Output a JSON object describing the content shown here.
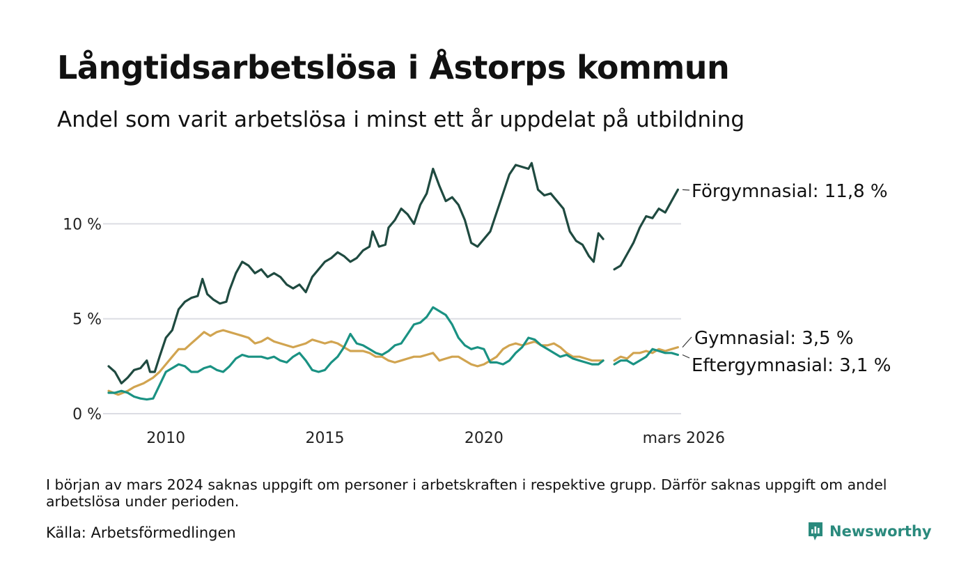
{
  "title": "Långtidsarbetslösa i Åstorps kommun",
  "subtitle": "Andel som varit arbetslösa i minst ett år uppdelat på utbildning",
  "note": "I början av mars 2024 saknas uppgift om personer i arbetskraften i respektive grupp. Därför saknas uppgift om andel arbetslösa under perioden.",
  "source": "Källa: Arbetsförmedlingen",
  "brand": "Newsworthy",
  "colors": {
    "forgymnasial": "#1f4a40",
    "gymnasial": "#d1a450",
    "eftergymnasial": "#1a9283",
    "grid": "#dcdde3",
    "brand": "#2a8a7d"
  },
  "chart_data": {
    "type": "line",
    "title": "Långtidsarbetslösa i Åstorps kommun",
    "xlabel": "",
    "ylabel": "",
    "xlim": [
      2008.2,
      2026.2
    ],
    "ylim": [
      0,
      13.5
    ],
    "y_ticks": [
      {
        "value": 0,
        "label": "0 %"
      },
      {
        "value": 5,
        "label": "5 %"
      },
      {
        "value": 10,
        "label": "10 %"
      }
    ],
    "x_ticks": [
      {
        "value": 2010,
        "label": "2010"
      },
      {
        "value": 2015,
        "label": "2015"
      },
      {
        "value": 2020,
        "label": "2020"
      },
      {
        "value": 2026.2,
        "label": "mars 2026"
      }
    ],
    "gap": [
      2023.8,
      2024.1
    ],
    "series": [
      {
        "name": "Förgymnasial",
        "color_key": "forgymnasial",
        "end_label": "Förgymnasial: 11,8 %",
        "points": [
          [
            2008.2,
            2.5
          ],
          [
            2008.4,
            2.2
          ],
          [
            2008.6,
            1.6
          ],
          [
            2008.8,
            1.9
          ],
          [
            2009.0,
            2.3
          ],
          [
            2009.2,
            2.4
          ],
          [
            2009.4,
            2.8
          ],
          [
            2009.5,
            2.2
          ],
          [
            2009.65,
            2.2
          ],
          [
            2009.8,
            3.0
          ],
          [
            2010.0,
            4.0
          ],
          [
            2010.2,
            4.4
          ],
          [
            2010.4,
            5.5
          ],
          [
            2010.6,
            5.9
          ],
          [
            2010.8,
            6.1
          ],
          [
            2011.0,
            6.2
          ],
          [
            2011.15,
            7.1
          ],
          [
            2011.3,
            6.3
          ],
          [
            2011.5,
            6.0
          ],
          [
            2011.7,
            5.8
          ],
          [
            2011.9,
            5.9
          ],
          [
            2012.0,
            6.5
          ],
          [
            2012.2,
            7.4
          ],
          [
            2012.4,
            8.0
          ],
          [
            2012.6,
            7.8
          ],
          [
            2012.8,
            7.4
          ],
          [
            2013.0,
            7.6
          ],
          [
            2013.2,
            7.2
          ],
          [
            2013.4,
            7.4
          ],
          [
            2013.6,
            7.2
          ],
          [
            2013.8,
            6.8
          ],
          [
            2014.0,
            6.6
          ],
          [
            2014.2,
            6.8
          ],
          [
            2014.4,
            6.4
          ],
          [
            2014.6,
            7.2
          ],
          [
            2014.8,
            7.6
          ],
          [
            2015.0,
            8.0
          ],
          [
            2015.2,
            8.2
          ],
          [
            2015.4,
            8.5
          ],
          [
            2015.6,
            8.3
          ],
          [
            2015.8,
            8.0
          ],
          [
            2016.0,
            8.2
          ],
          [
            2016.2,
            8.6
          ],
          [
            2016.4,
            8.8
          ],
          [
            2016.5,
            9.6
          ],
          [
            2016.7,
            8.8
          ],
          [
            2016.9,
            8.9
          ],
          [
            2017.0,
            9.8
          ],
          [
            2017.2,
            10.2
          ],
          [
            2017.4,
            10.8
          ],
          [
            2017.6,
            10.5
          ],
          [
            2017.8,
            10.0
          ],
          [
            2018.0,
            11.0
          ],
          [
            2018.2,
            11.6
          ],
          [
            2018.4,
            12.9
          ],
          [
            2018.6,
            12.0
          ],
          [
            2018.8,
            11.2
          ],
          [
            2019.0,
            11.4
          ],
          [
            2019.2,
            11.0
          ],
          [
            2019.4,
            10.2
          ],
          [
            2019.6,
            9.0
          ],
          [
            2019.8,
            8.8
          ],
          [
            2020.0,
            9.2
          ],
          [
            2020.2,
            9.6
          ],
          [
            2020.4,
            10.6
          ],
          [
            2020.6,
            11.6
          ],
          [
            2020.8,
            12.6
          ],
          [
            2021.0,
            13.1
          ],
          [
            2021.2,
            13.0
          ],
          [
            2021.4,
            12.9
          ],
          [
            2021.5,
            13.2
          ],
          [
            2021.7,
            11.8
          ],
          [
            2021.9,
            11.5
          ],
          [
            2022.1,
            11.6
          ],
          [
            2022.3,
            11.2
          ],
          [
            2022.5,
            10.8
          ],
          [
            2022.7,
            9.6
          ],
          [
            2022.9,
            9.1
          ],
          [
            2023.1,
            8.9
          ],
          [
            2023.3,
            8.3
          ],
          [
            2023.45,
            8.0
          ],
          [
            2023.6,
            9.5
          ],
          [
            2023.75,
            9.2
          ],
          null,
          [
            2024.1,
            7.6
          ],
          [
            2024.3,
            7.8
          ],
          [
            2024.5,
            8.4
          ],
          [
            2024.7,
            9.0
          ],
          [
            2024.9,
            9.8
          ],
          [
            2025.1,
            10.4
          ],
          [
            2025.3,
            10.3
          ],
          [
            2025.5,
            10.8
          ],
          [
            2025.7,
            10.6
          ],
          [
            2025.9,
            11.2
          ],
          [
            2026.1,
            11.8
          ]
        ]
      },
      {
        "name": "Gymnasial",
        "color_key": "gymnasial",
        "end_label": "Gymnasial:  3,5 %",
        "points": [
          [
            2008.2,
            1.2
          ],
          [
            2008.5,
            1.0
          ],
          [
            2008.8,
            1.2
          ],
          [
            2009.0,
            1.4
          ],
          [
            2009.3,
            1.6
          ],
          [
            2009.6,
            1.9
          ],
          [
            2009.8,
            2.2
          ],
          [
            2010.0,
            2.6
          ],
          [
            2010.2,
            3.0
          ],
          [
            2010.4,
            3.4
          ],
          [
            2010.6,
            3.4
          ],
          [
            2010.8,
            3.7
          ],
          [
            2011.0,
            4.0
          ],
          [
            2011.2,
            4.3
          ],
          [
            2011.4,
            4.1
          ],
          [
            2011.6,
            4.3
          ],
          [
            2011.8,
            4.4
          ],
          [
            2012.0,
            4.3
          ],
          [
            2012.2,
            4.2
          ],
          [
            2012.4,
            4.1
          ],
          [
            2012.6,
            4.0
          ],
          [
            2012.8,
            3.7
          ],
          [
            2013.0,
            3.8
          ],
          [
            2013.2,
            4.0
          ],
          [
            2013.4,
            3.8
          ],
          [
            2013.6,
            3.7
          ],
          [
            2013.8,
            3.6
          ],
          [
            2014.0,
            3.5
          ],
          [
            2014.2,
            3.6
          ],
          [
            2014.4,
            3.7
          ],
          [
            2014.6,
            3.9
          ],
          [
            2014.8,
            3.8
          ],
          [
            2015.0,
            3.7
          ],
          [
            2015.2,
            3.8
          ],
          [
            2015.4,
            3.7
          ],
          [
            2015.6,
            3.5
          ],
          [
            2015.8,
            3.3
          ],
          [
            2016.0,
            3.3
          ],
          [
            2016.2,
            3.3
          ],
          [
            2016.4,
            3.2
          ],
          [
            2016.6,
            3.0
          ],
          [
            2016.8,
            3.0
          ],
          [
            2017.0,
            2.8
          ],
          [
            2017.2,
            2.7
          ],
          [
            2017.4,
            2.8
          ],
          [
            2017.6,
            2.9
          ],
          [
            2017.8,
            3.0
          ],
          [
            2018.0,
            3.0
          ],
          [
            2018.2,
            3.1
          ],
          [
            2018.4,
            3.2
          ],
          [
            2018.6,
            2.8
          ],
          [
            2018.8,
            2.9
          ],
          [
            2019.0,
            3.0
          ],
          [
            2019.2,
            3.0
          ],
          [
            2019.4,
            2.8
          ],
          [
            2019.6,
            2.6
          ],
          [
            2019.8,
            2.5
          ],
          [
            2020.0,
            2.6
          ],
          [
            2020.2,
            2.8
          ],
          [
            2020.4,
            3.0
          ],
          [
            2020.6,
            3.4
          ],
          [
            2020.8,
            3.6
          ],
          [
            2021.0,
            3.7
          ],
          [
            2021.2,
            3.6
          ],
          [
            2021.4,
            3.7
          ],
          [
            2021.6,
            3.8
          ],
          [
            2021.8,
            3.6
          ],
          [
            2022.0,
            3.6
          ],
          [
            2022.2,
            3.7
          ],
          [
            2022.4,
            3.5
          ],
          [
            2022.6,
            3.2
          ],
          [
            2022.8,
            3.0
          ],
          [
            2023.0,
            3.0
          ],
          [
            2023.2,
            2.9
          ],
          [
            2023.4,
            2.8
          ],
          [
            2023.6,
            2.8
          ],
          [
            2023.75,
            2.8
          ],
          null,
          [
            2024.1,
            2.8
          ],
          [
            2024.3,
            3.0
          ],
          [
            2024.5,
            2.9
          ],
          [
            2024.7,
            3.2
          ],
          [
            2024.9,
            3.2
          ],
          [
            2025.1,
            3.3
          ],
          [
            2025.3,
            3.2
          ],
          [
            2025.5,
            3.4
          ],
          [
            2025.7,
            3.3
          ],
          [
            2025.9,
            3.4
          ],
          [
            2026.1,
            3.5
          ]
        ]
      },
      {
        "name": "Eftergymnasial",
        "color_key": "eftergymnasial",
        "end_label": "Eftergymnasial:  3,1 %",
        "points": [
          [
            2008.2,
            1.1
          ],
          [
            2008.4,
            1.1
          ],
          [
            2008.6,
            1.2
          ],
          [
            2008.8,
            1.1
          ],
          [
            2009.0,
            0.9
          ],
          [
            2009.2,
            0.8
          ],
          [
            2009.4,
            0.75
          ],
          [
            2009.6,
            0.8
          ],
          [
            2009.8,
            1.5
          ],
          [
            2010.0,
            2.2
          ],
          [
            2010.2,
            2.4
          ],
          [
            2010.4,
            2.6
          ],
          [
            2010.6,
            2.5
          ],
          [
            2010.8,
            2.2
          ],
          [
            2011.0,
            2.2
          ],
          [
            2011.2,
            2.4
          ],
          [
            2011.4,
            2.5
          ],
          [
            2011.6,
            2.3
          ],
          [
            2011.8,
            2.2
          ],
          [
            2012.0,
            2.5
          ],
          [
            2012.2,
            2.9
          ],
          [
            2012.4,
            3.1
          ],
          [
            2012.6,
            3.0
          ],
          [
            2012.8,
            3.0
          ],
          [
            2013.0,
            3.0
          ],
          [
            2013.2,
            2.9
          ],
          [
            2013.4,
            3.0
          ],
          [
            2013.6,
            2.8
          ],
          [
            2013.8,
            2.7
          ],
          [
            2014.0,
            3.0
          ],
          [
            2014.2,
            3.2
          ],
          [
            2014.4,
            2.8
          ],
          [
            2014.6,
            2.3
          ],
          [
            2014.8,
            2.2
          ],
          [
            2015.0,
            2.3
          ],
          [
            2015.2,
            2.7
          ],
          [
            2015.4,
            3.0
          ],
          [
            2015.6,
            3.5
          ],
          [
            2015.8,
            4.2
          ],
          [
            2016.0,
            3.7
          ],
          [
            2016.2,
            3.6
          ],
          [
            2016.4,
            3.4
          ],
          [
            2016.6,
            3.2
          ],
          [
            2016.8,
            3.1
          ],
          [
            2017.0,
            3.3
          ],
          [
            2017.2,
            3.6
          ],
          [
            2017.4,
            3.7
          ],
          [
            2017.6,
            4.2
          ],
          [
            2017.8,
            4.7
          ],
          [
            2018.0,
            4.8
          ],
          [
            2018.2,
            5.1
          ],
          [
            2018.4,
            5.6
          ],
          [
            2018.6,
            5.4
          ],
          [
            2018.8,
            5.2
          ],
          [
            2019.0,
            4.7
          ],
          [
            2019.2,
            4.0
          ],
          [
            2019.4,
            3.6
          ],
          [
            2019.6,
            3.4
          ],
          [
            2019.8,
            3.5
          ],
          [
            2020.0,
            3.4
          ],
          [
            2020.2,
            2.7
          ],
          [
            2020.4,
            2.7
          ],
          [
            2020.6,
            2.6
          ],
          [
            2020.8,
            2.8
          ],
          [
            2021.0,
            3.2
          ],
          [
            2021.2,
            3.5
          ],
          [
            2021.4,
            4.0
          ],
          [
            2021.6,
            3.9
          ],
          [
            2021.8,
            3.6
          ],
          [
            2022.0,
            3.4
          ],
          [
            2022.2,
            3.2
          ],
          [
            2022.4,
            3.0
          ],
          [
            2022.6,
            3.1
          ],
          [
            2022.8,
            2.9
          ],
          [
            2023.0,
            2.8
          ],
          [
            2023.2,
            2.7
          ],
          [
            2023.4,
            2.6
          ],
          [
            2023.6,
            2.6
          ],
          [
            2023.75,
            2.8
          ],
          null,
          [
            2024.1,
            2.6
          ],
          [
            2024.3,
            2.8
          ],
          [
            2024.5,
            2.8
          ],
          [
            2024.7,
            2.6
          ],
          [
            2024.9,
            2.8
          ],
          [
            2025.1,
            3.0
          ],
          [
            2025.3,
            3.4
          ],
          [
            2025.5,
            3.3
          ],
          [
            2025.7,
            3.2
          ],
          [
            2025.9,
            3.2
          ],
          [
            2026.1,
            3.1
          ]
        ]
      }
    ]
  }
}
